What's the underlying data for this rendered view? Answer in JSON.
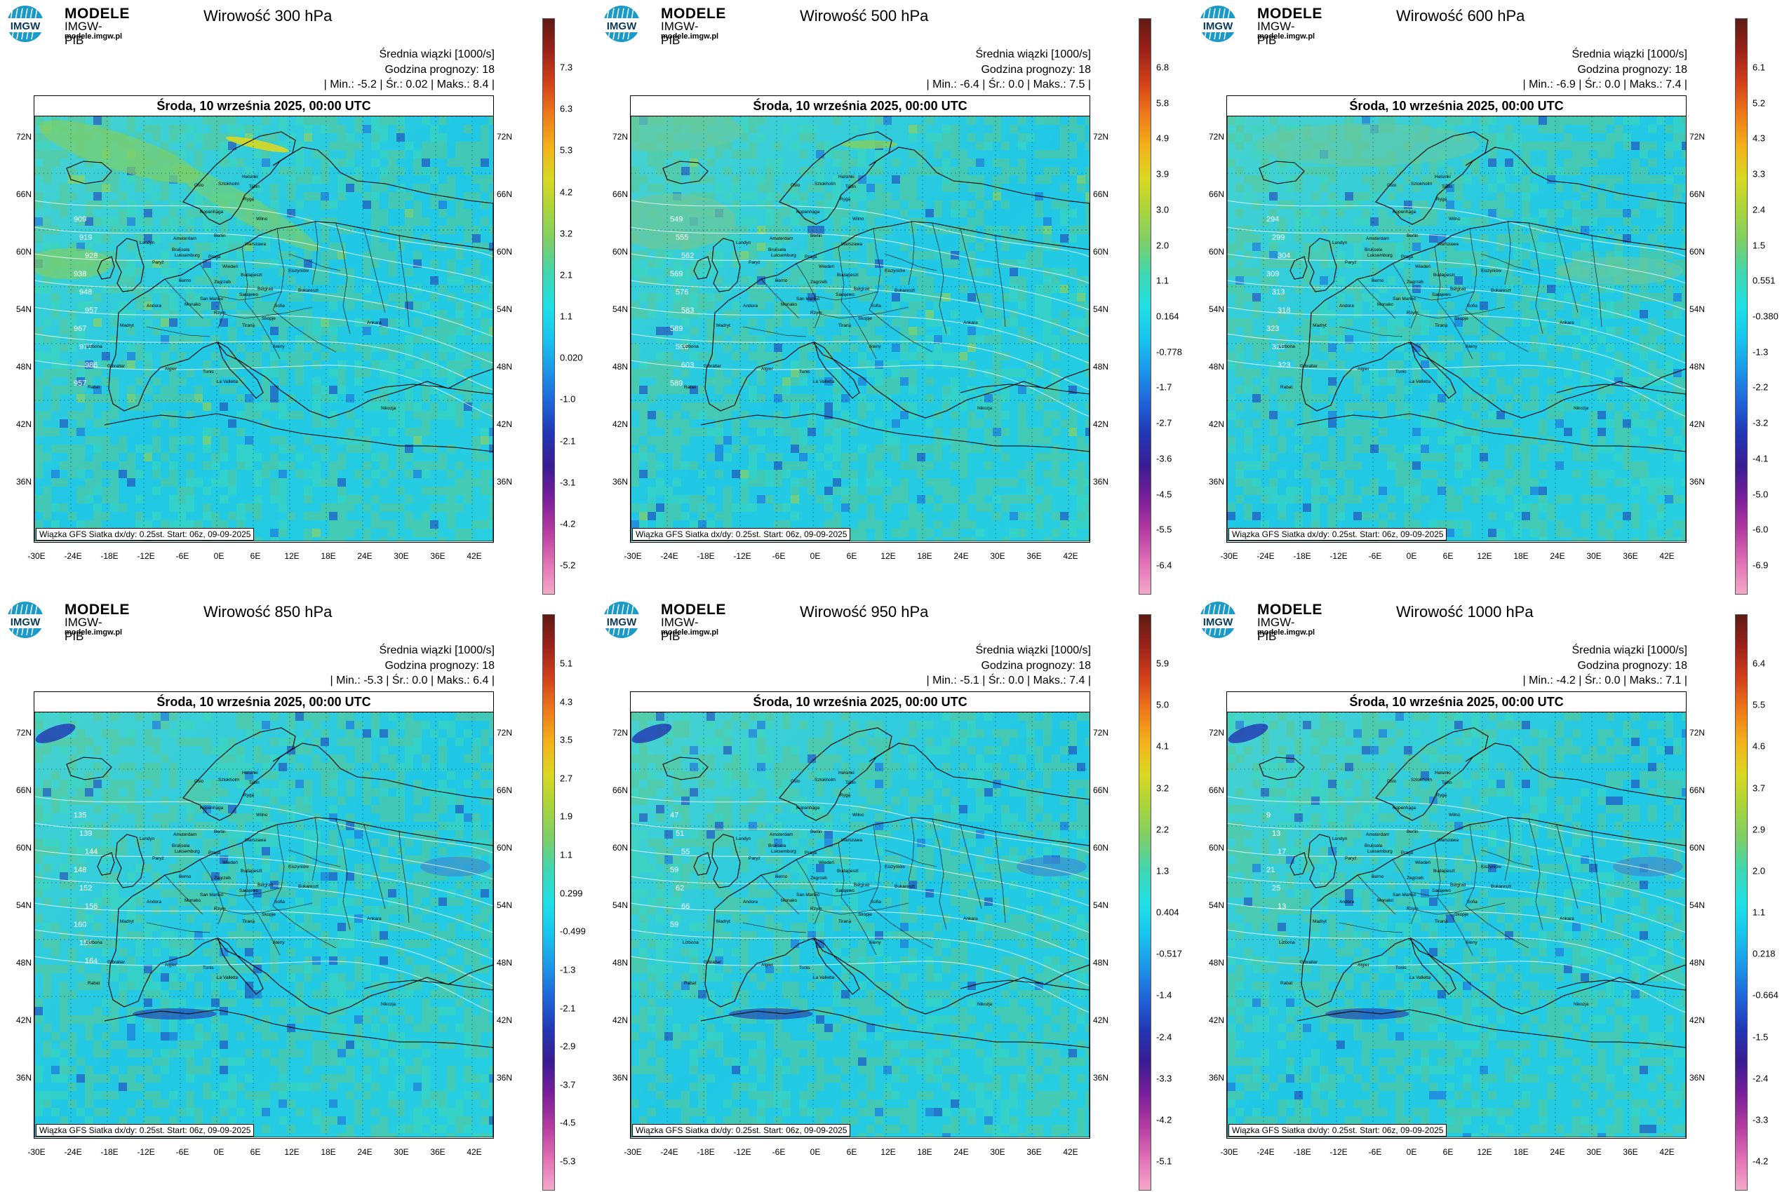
{
  "brand": {
    "logo_text": "IMGW",
    "title": "MODELE",
    "subtitle": "IMGW-PIB",
    "url": "modele.imgw.pl"
  },
  "common": {
    "variable": "Średnia wiązki [1000/s]",
    "forecast_hour": "Godzina prognozy: 18",
    "date": "Środa, 10 września 2025, 00:00 UTC",
    "footer": "Wiązka GFS Siatka dx/dy: 0.25st. Start: 06z, 09-09-2025",
    "lon_ticks": [
      "-30E",
      "-24E",
      "-18E",
      "-12E",
      "-6E",
      "0E",
      "6E",
      "12E",
      "18E",
      "24E",
      "30E",
      "36E",
      "42E"
    ],
    "lat_ticks": [
      "72N",
      "66N",
      "60N",
      "54N",
      "48N",
      "42N",
      "36N"
    ]
  },
  "panels": [
    {
      "title": "Wirowość 300 hPa",
      "stats": "| Min.:    -5.2 | Śr.:    0.02 | Maks.:     8.4 |",
      "colorbar": [
        "7.3",
        "6.3",
        "5.3",
        "4.2",
        "3.2",
        "2.1",
        "1.1",
        "0.020",
        "-1.0",
        "-2.1",
        "-3.1",
        "-4.2",
        "-5.2"
      ],
      "contours": [
        "909",
        "919",
        "928",
        "938",
        "948",
        "957",
        "967",
        "977",
        "986",
        "957"
      ]
    },
    {
      "title": "Wirowość 500 hPa",
      "stats": "| Min.:    -6.4 | Śr.:    0.0 | Maks.:     7.5 |",
      "colorbar": [
        "6.8",
        "5.8",
        "4.9",
        "3.9",
        "3.0",
        "2.0",
        "1.1",
        "0.164",
        "-0.778",
        "-1.7",
        "-2.7",
        "-3.6",
        "-4.5",
        "-5.5",
        "-6.4"
      ],
      "contours": [
        "549",
        "555",
        "562",
        "569",
        "576",
        "583",
        "589",
        "596",
        "603",
        "589"
      ]
    },
    {
      "title": "Wirowość 600 hPa",
      "stats": "| Min.:    -6.9 | Śr.:    0.0 | Maks.:     7.4 |",
      "colorbar": [
        "6.1",
        "5.2",
        "4.3",
        "3.3",
        "2.4",
        "1.5",
        "0.551",
        "-0.380",
        "-1.3",
        "-2.2",
        "-3.2",
        "-4.1",
        "-5.0",
        "-6.0",
        "-6.9"
      ],
      "contours": [
        "294",
        "299",
        "304",
        "309",
        "313",
        "318",
        "323",
        "328",
        "323"
      ]
    },
    {
      "title": "Wirowość 850 hPa",
      "stats": "| Min.:    -5.3 | Śr.:    0.0 | Maks.:     6.4 |",
      "colorbar": [
        "5.1",
        "4.3",
        "3.5",
        "2.7",
        "1.9",
        "1.1",
        "0.299",
        "-0.499",
        "-1.3",
        "-2.1",
        "-2.9",
        "-3.7",
        "-4.5",
        "-5.3"
      ],
      "contours": [
        "135",
        "139",
        "144",
        "148",
        "152",
        "156",
        "160",
        "154",
        "164"
      ]
    },
    {
      "title": "Wirowość 950 hPa",
      "stats": "| Min.:    -5.1 | Śr.:    0.0 | Maks.:     7.4 |",
      "colorbar": [
        "5.9",
        "5.0",
        "4.1",
        "3.2",
        "2.2",
        "1.3",
        "0.404",
        "-0.517",
        "-1.4",
        "-2.4",
        "-3.3",
        "-4.2",
        "-5.1"
      ],
      "contours": [
        "47",
        "51",
        "55",
        "59",
        "62",
        "66",
        "59"
      ]
    },
    {
      "title": "Wirowość 1000 hPa",
      "stats": "| Min.:    -4.2 | Śr.:    0.0 | Maks.:     7.1 |",
      "colorbar": [
        "6.4",
        "5.5",
        "4.6",
        "3.7",
        "2.9",
        "2.0",
        "1.1",
        "0.218",
        "-0.664",
        "-1.5",
        "-2.4",
        "-3.3",
        "-4.2"
      ],
      "contours": [
        "9",
        "13",
        "17",
        "21",
        "25",
        "13"
      ]
    }
  ],
  "cities": [
    "Oslo",
    "Sztokholm",
    "Helsinki",
    "Tallin",
    "Ryga",
    "Kopenhaga",
    "Wilno",
    "Amsterdam",
    "Berlin",
    "Warszawa",
    "Londyn",
    "Bruksela",
    "Luksemburg",
    "Paryż",
    "Praga",
    "Wiedeń",
    "Berno",
    "Zagrzeb",
    "Budapeszt",
    "Kiszyniów",
    "Belgrad",
    "Bukareszt",
    "Sarajewo",
    "San Marino",
    "Andora",
    "Monako",
    "Rzym",
    "Sofia",
    "Skopje",
    "Tirana",
    "Ateny",
    "Ankara",
    "Madryt",
    "Lizbona",
    "Gibraltar",
    "Algier",
    "Tunis",
    "La Valletta",
    "Rabat",
    "Nikozja"
  ],
  "colors": {
    "ramp": [
      "#f4a9c9",
      "#e06fb5",
      "#b33ba0",
      "#7a1f9a",
      "#3a1c93",
      "#2236b4",
      "#1f64d8",
      "#1c97e8",
      "#19c4ee",
      "#20e0e6",
      "#3fd7b2",
      "#7ccf6a",
      "#a8d43c",
      "#d9d822",
      "#f3b21b",
      "#ee7a19",
      "#d2421a",
      "#9c221a",
      "#5e1b14"
    ],
    "ocean_base": "#1fc9e8",
    "land_green": "#6cc89a",
    "contour": "#ffffff",
    "border": "#000000"
  }
}
